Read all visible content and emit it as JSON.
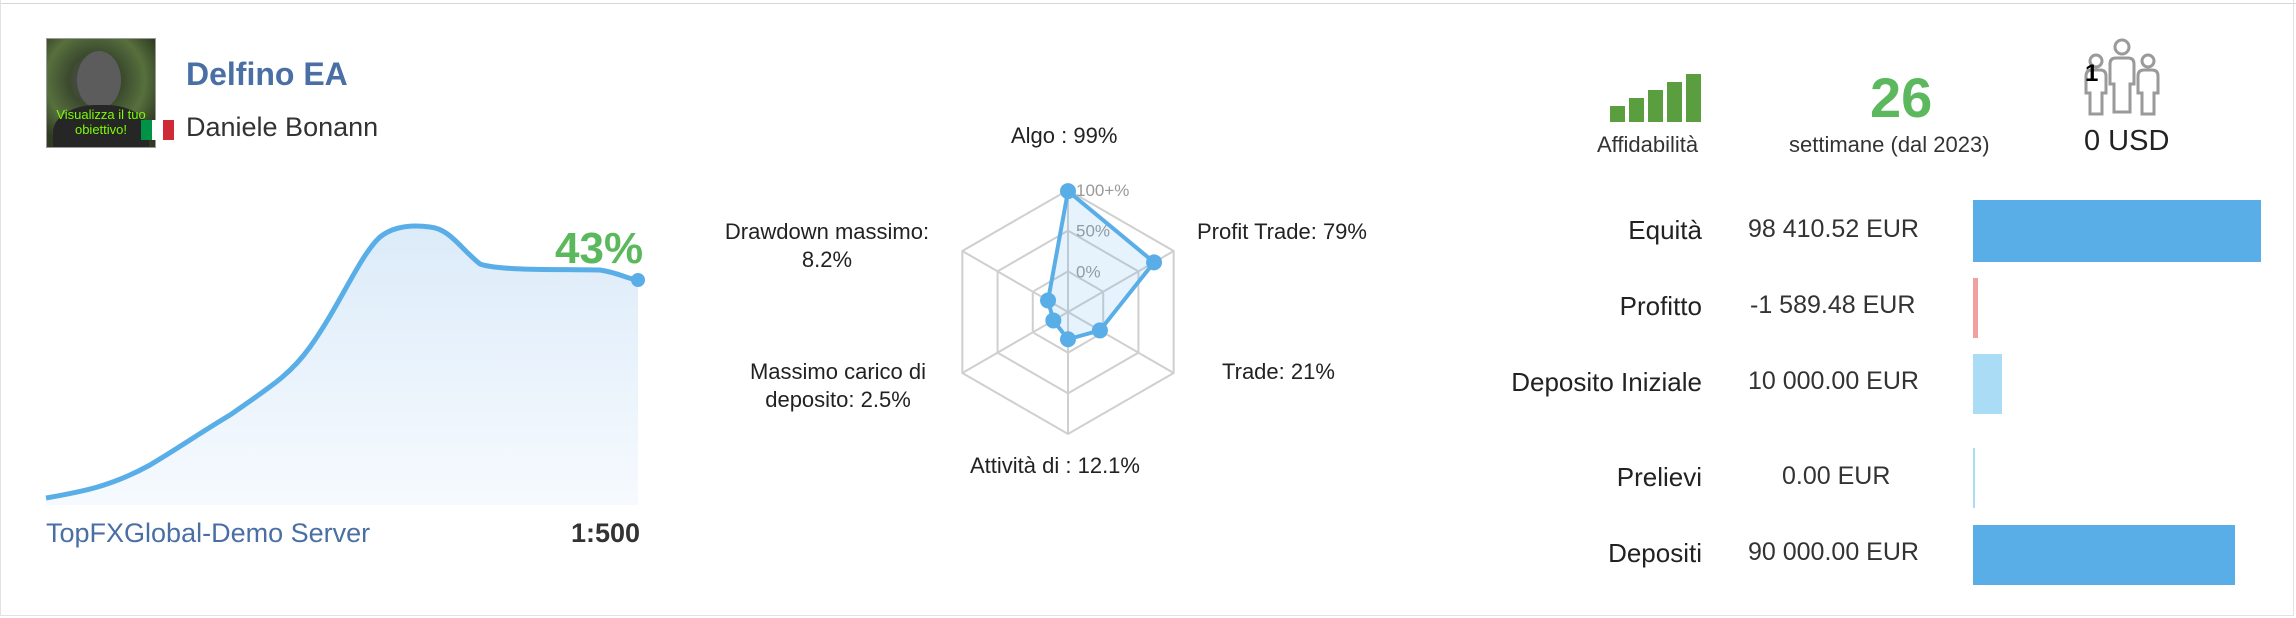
{
  "profile": {
    "name": "Delfino EA",
    "author": "Daniele Bonann",
    "avatar_caption": "Visualizza il tuo obiettivo!",
    "flag_colors": [
      "#009246",
      "#ffffff",
      "#ce2b37"
    ]
  },
  "growth": {
    "percent": "43%",
    "server": "TopFXGlobal-Demo Server",
    "leverage": "1:500"
  },
  "radar": {
    "scale_labels": [
      "100+%",
      "50%",
      "0%"
    ],
    "axes": [
      {
        "label": "Algo : 99%",
        "value": 99
      },
      {
        "label": "Profit Trade: 79%",
        "value": 79
      },
      {
        "label": "Trade: 21%",
        "value": 21
      },
      {
        "label": "Attività di : 12.1%",
        "value": 12.1
      },
      {
        "label": "Massimo carico di deposito: 2.5%",
        "value": 2.5
      },
      {
        "label": "Drawdown massimo: 8.2%",
        "value": 8.2
      }
    ]
  },
  "reliability": {
    "label": "Affidabilità",
    "bars": 5,
    "color": "#5a9e40"
  },
  "weeks": {
    "value": "26",
    "label": "settimane (dal 2023)"
  },
  "subscribers": {
    "count": "1",
    "price": "0 USD",
    "icon": "subscribers-icon"
  },
  "metrics": [
    {
      "label": "Equità",
      "value": "98 410.52 EUR",
      "share": 1.0,
      "color": "#5aaee8"
    },
    {
      "label": "Profitto",
      "value": "-1 589.48 EUR",
      "share": 0.016,
      "color": "#f0a0a0"
    },
    {
      "label": "Deposito Iniziale",
      "value": "10 000.00 EUR",
      "share": 0.1,
      "color": "#aadcf5"
    },
    {
      "label": "Prelievi",
      "value": "0.00 EUR",
      "share": 0.0,
      "color": "#aadcf5"
    },
    {
      "label": "Depositi",
      "value": "90 000.00 EUR",
      "share": 0.91,
      "color": "#5aaee8"
    }
  ],
  "colors": {
    "accent_blue": "#4a6fa5",
    "gain_green": "#5cb85c",
    "chart_line": "#5aaee8"
  }
}
